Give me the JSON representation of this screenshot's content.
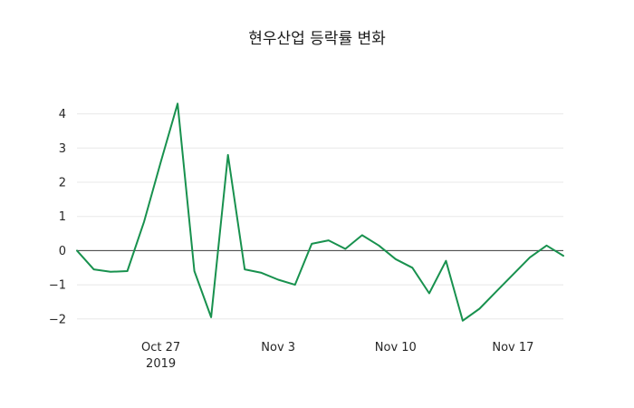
{
  "chart_data": {
    "type": "line",
    "title": "현우산업 등락률 변화",
    "x": [
      "2019-10-22",
      "2019-10-23",
      "2019-10-24",
      "2019-10-25",
      "2019-10-26",
      "2019-10-27",
      "2019-10-28",
      "2019-10-29",
      "2019-10-30",
      "2019-10-31",
      "2019-11-01",
      "2019-11-02",
      "2019-11-03",
      "2019-11-04",
      "2019-11-05",
      "2019-11-06",
      "2019-11-07",
      "2019-11-08",
      "2019-11-09",
      "2019-11-10",
      "2019-11-11",
      "2019-11-12",
      "2019-11-13",
      "2019-11-14",
      "2019-11-15",
      "2019-11-16",
      "2019-11-17",
      "2019-11-18",
      "2019-11-19",
      "2019-11-20"
    ],
    "values": [
      0.0,
      -0.55,
      -0.62,
      -0.6,
      0.85,
      2.6,
      4.3,
      -0.6,
      -1.95,
      2.8,
      -0.55,
      -0.65,
      -0.85,
      -1.0,
      0.2,
      0.3,
      0.05,
      0.45,
      0.15,
      -0.25,
      -0.5,
      -1.25,
      -0.3,
      -2.05,
      -1.7,
      -1.2,
      -0.7,
      -0.2,
      0.15,
      -0.15
    ],
    "ylim": [
      -2.35,
      4.6
    ],
    "yticks": [
      -2,
      -1,
      0,
      1,
      2,
      3,
      4
    ],
    "xticks": [
      {
        "date": "2019-10-27",
        "label": "Oct 27",
        "sublabel": "2019"
      },
      {
        "date": "2019-11-03",
        "label": "Nov 3"
      },
      {
        "date": "2019-11-10",
        "label": "Nov 10"
      },
      {
        "date": "2019-11-17",
        "label": "Nov 17"
      }
    ],
    "line_color": "#18914e",
    "zero_line_color": "#3c3c3c",
    "grid_color": "#e8e8e8",
    "background_color": "#ffffff",
    "grid": true,
    "legend_position": "none",
    "xlabel": "",
    "ylabel": ""
  }
}
